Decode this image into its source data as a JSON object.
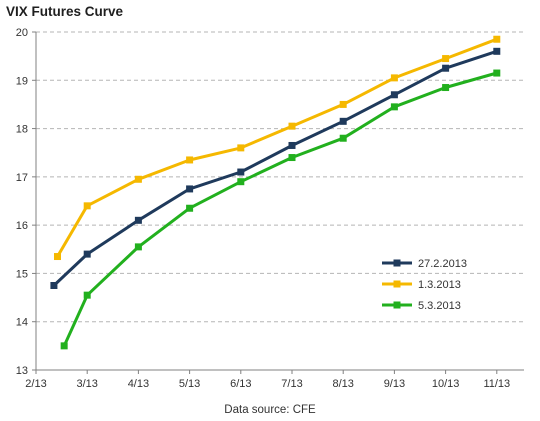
{
  "chart_data": {
    "type": "line",
    "title": "VIX Futures Curve",
    "source_note": "Data source: CFE",
    "x_ticks": [
      "2/13",
      "3/13",
      "4/13",
      "5/13",
      "6/13",
      "7/13",
      "8/13",
      "9/13",
      "10/13",
      "11/13"
    ],
    "ylim": [
      13,
      20
    ],
    "y_ticks": [
      13,
      14,
      15,
      16,
      17,
      18,
      19,
      20
    ],
    "grid": true,
    "legend_position": "right-center",
    "series": [
      {
        "name": "27.2.2013",
        "color": "#1f3a5c",
        "points": [
          [
            0.35,
            14.75
          ],
          [
            1.0,
            15.4
          ],
          [
            2.0,
            16.1
          ],
          [
            3.0,
            16.75
          ],
          [
            4.0,
            17.1
          ],
          [
            5.0,
            17.65
          ],
          [
            6.0,
            18.15
          ],
          [
            7.0,
            18.7
          ],
          [
            8.0,
            19.25
          ],
          [
            9.0,
            19.6
          ]
        ]
      },
      {
        "name": "1.3.2013",
        "color": "#f5b800",
        "points": [
          [
            0.42,
            15.35
          ],
          [
            1.0,
            16.4
          ],
          [
            2.0,
            16.95
          ],
          [
            3.0,
            17.35
          ],
          [
            4.0,
            17.6
          ],
          [
            5.0,
            18.05
          ],
          [
            6.0,
            18.5
          ],
          [
            7.0,
            19.05
          ],
          [
            8.0,
            19.45
          ],
          [
            9.0,
            19.85
          ]
        ]
      },
      {
        "name": "5.3.2013",
        "color": "#22b01e",
        "points": [
          [
            0.55,
            13.5
          ],
          [
            1.0,
            14.55
          ],
          [
            2.0,
            15.55
          ],
          [
            3.0,
            16.35
          ],
          [
            4.0,
            16.9
          ],
          [
            5.0,
            17.4
          ],
          [
            6.0,
            17.8
          ],
          [
            7.0,
            18.45
          ],
          [
            8.0,
            18.85
          ],
          [
            9.0,
            19.15
          ]
        ]
      }
    ]
  }
}
